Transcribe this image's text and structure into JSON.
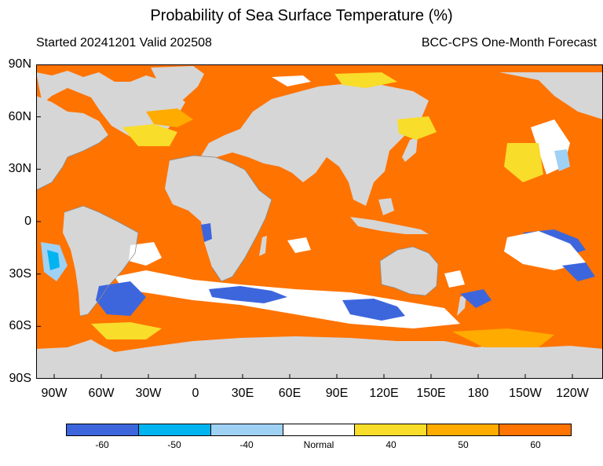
{
  "title": "Probability of Sea Surface Temperature (%)",
  "started": "Started 20241201  Valid 202508",
  "model": "BCC-CPS One-Month Forecast",
  "lat_ticks": [
    "90N",
    "60N",
    "30N",
    "0",
    "30S",
    "60S",
    "90S"
  ],
  "lon_ticks": [
    "90W",
    "60W",
    "30W",
    "0",
    "30E",
    "60E",
    "90E",
    "120E",
    "150E",
    "180",
    "150W",
    "120W"
  ],
  "legend": {
    "colors": [
      "#3d66dd",
      "#00b4f0",
      "#9fd1f5",
      "#ffffff",
      "#f8dd2a",
      "#ffab00",
      "#ff7300"
    ],
    "labels": [
      "-60",
      "-50",
      "-40",
      "Normal",
      "40",
      "50",
      "60"
    ]
  },
  "map_colors": {
    "land": "#d6d6d6",
    "ocean_warm": "#ff7300",
    "coast": "#8b8b8b"
  }
}
